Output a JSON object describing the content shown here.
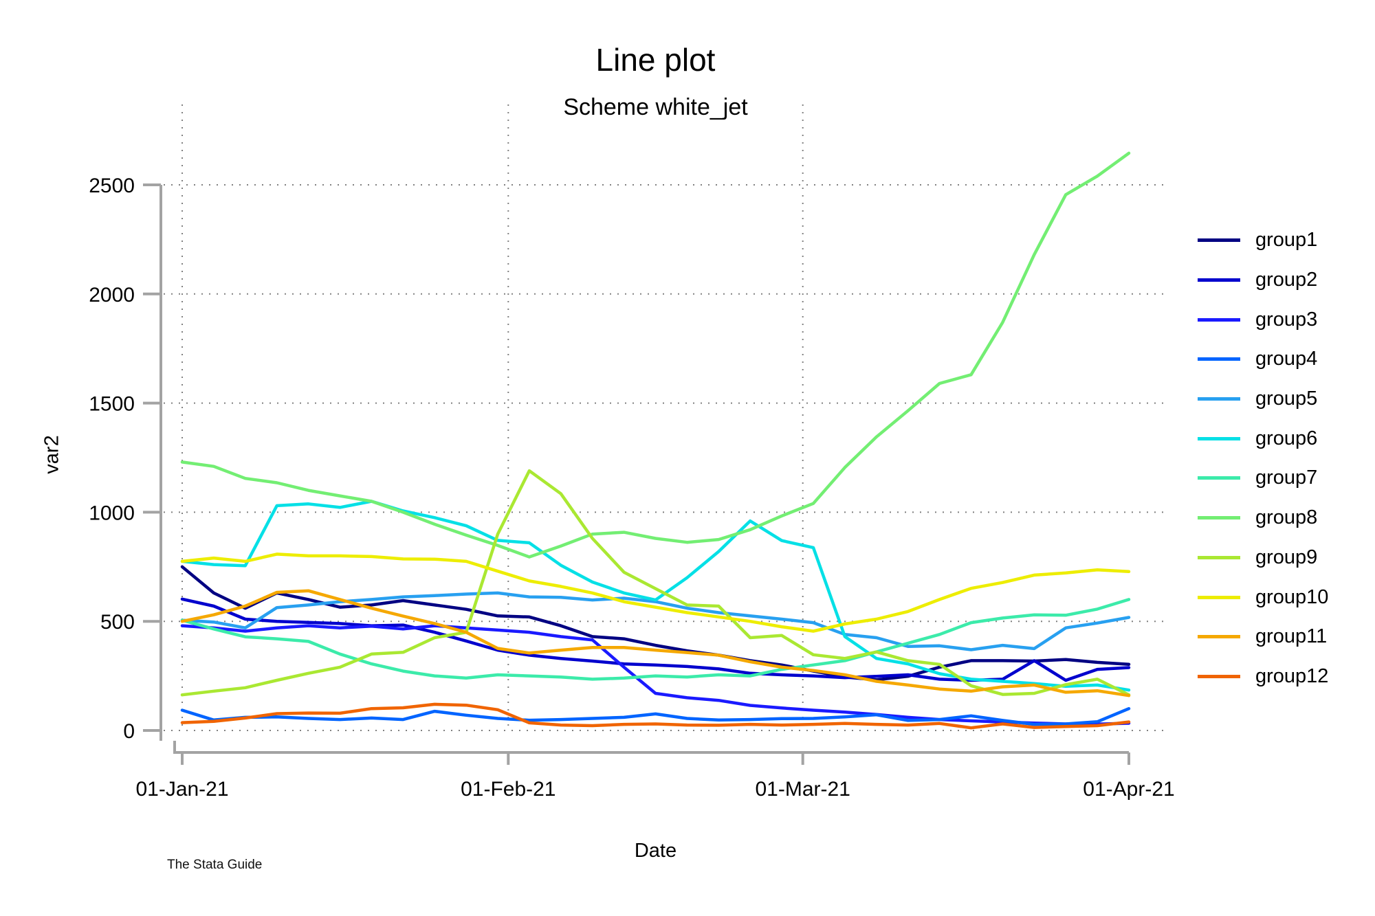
{
  "title": "Line plot",
  "subtitle": "Scheme white_jet",
  "caption": "The Stata Guide",
  "chart_data": {
    "type": "line",
    "title": "Line plot",
    "subtitle": "Scheme white_jet",
    "xlabel": "Date",
    "ylabel": "var2",
    "grid": true,
    "legend_position": "right",
    "ylim": [
      0,
      2650
    ],
    "y_ticks": [
      0,
      500,
      1000,
      1500,
      2000,
      2500
    ],
    "x_ticks": [
      {
        "day": 0,
        "label": "01-Jan-21"
      },
      {
        "day": 31,
        "label": "01-Feb-21"
      },
      {
        "day": 59,
        "label": "01-Mar-21"
      },
      {
        "day": 90,
        "label": "01-Apr-21"
      }
    ],
    "x_gridline_days": [
      0,
      31,
      59
    ],
    "days": [
      0,
      3,
      6,
      9,
      12,
      15,
      18,
      21,
      24,
      27,
      30,
      33,
      36,
      39,
      42,
      45,
      48,
      51,
      54,
      57,
      60,
      63,
      66,
      69,
      72,
      75,
      78,
      81,
      84,
      87,
      90
    ],
    "series": [
      {
        "name": "group1",
        "color": "#000082",
        "values": [
          750,
          630,
          560,
          630,
          600,
          565,
          575,
          595,
          575,
          555,
          525,
          520,
          480,
          430,
          420,
          390,
          365,
          345,
          320,
          300,
          272,
          245,
          232,
          248,
          290,
          320,
          320,
          318,
          325,
          312,
          303
        ]
      },
      {
        "name": "group2",
        "color": "#0000CD",
        "values": [
          602,
          570,
          510,
          500,
          495,
          490,
          480,
          483,
          450,
          410,
          368,
          345,
          330,
          318,
          305,
          300,
          293,
          282,
          262,
          255,
          250,
          242,
          248,
          255,
          235,
          230,
          235,
          320,
          230,
          280,
          288
        ]
      },
      {
        "name": "group3",
        "color": "#1A1AFF",
        "values": [
          480,
          470,
          455,
          470,
          480,
          470,
          478,
          465,
          480,
          470,
          460,
          450,
          430,
          415,
          290,
          170,
          150,
          138,
          115,
          103,
          93,
          84,
          73,
          60,
          50,
          44,
          39,
          34,
          30,
          29,
          33
        ]
      },
      {
        "name": "group4",
        "color": "#0064FF",
        "values": [
          93,
          48,
          60,
          62,
          55,
          50,
          57,
          50,
          88,
          70,
          55,
          47,
          50,
          55,
          60,
          76,
          55,
          48,
          50,
          54,
          55,
          62,
          72,
          46,
          50,
          67,
          46,
          28,
          30,
          40,
          100
        ]
      },
      {
        "name": "group5",
        "color": "#28A0F0",
        "values": [
          505,
          497,
          470,
          563,
          575,
          590,
          600,
          612,
          618,
          625,
          630,
          612,
          610,
          598,
          606,
          590,
          560,
          540,
          525,
          510,
          494,
          440,
          425,
          385,
          388,
          370,
          390,
          375,
          470,
          492,
          518
        ]
      },
      {
        "name": "group6",
        "color": "#06E0E6",
        "values": [
          775,
          760,
          755,
          1030,
          1038,
          1022,
          1050,
          1006,
          975,
          938,
          871,
          860,
          757,
          680,
          630,
          598,
          700,
          820,
          960,
          870,
          838,
          430,
          330,
          305,
          260,
          235,
          225,
          215,
          202,
          208,
          185
        ]
      },
      {
        "name": "group7",
        "color": "#3CEBAA",
        "values": [
          505,
          465,
          429,
          420,
          408,
          350,
          305,
          272,
          250,
          240,
          255,
          250,
          245,
          235,
          240,
          250,
          245,
          255,
          250,
          280,
          300,
          320,
          360,
          400,
          440,
          494,
          515,
          530,
          528,
          556,
          600
        ]
      },
      {
        "name": "group8",
        "color": "#73EE73",
        "values": [
          1230,
          1210,
          1155,
          1135,
          1100,
          1075,
          1050,
          1000,
          945,
          895,
          848,
          795,
          845,
          900,
          908,
          880,
          862,
          875,
          920,
          983,
          1040,
          1205,
          1345,
          1465,
          1590,
          1630,
          1870,
          2180,
          2455,
          2540,
          2645
        ]
      },
      {
        "name": "group9",
        "color": "#AAE832",
        "values": [
          163,
          180,
          196,
          230,
          262,
          290,
          350,
          358,
          425,
          450,
          900,
          1190,
          1085,
          880,
          725,
          650,
          575,
          570,
          425,
          435,
          347,
          330,
          360,
          320,
          303,
          205,
          165,
          170,
          210,
          235,
          163
        ]
      },
      {
        "name": "group10",
        "color": "#EDED00",
        "values": [
          775,
          790,
          775,
          808,
          800,
          800,
          797,
          786,
          785,
          775,
          730,
          685,
          660,
          630,
          590,
          565,
          540,
          520,
          500,
          475,
          455,
          488,
          510,
          545,
          600,
          651,
          678,
          712,
          722,
          736,
          728
        ]
      },
      {
        "name": "group11",
        "color": "#F5A800",
        "values": [
          500,
          530,
          570,
          633,
          640,
          600,
          560,
          524,
          490,
          450,
          376,
          355,
          368,
          380,
          380,
          368,
          357,
          345,
          315,
          290,
          275,
          255,
          225,
          208,
          190,
          180,
          200,
          208,
          175,
          182,
          160
        ]
      },
      {
        "name": "group12",
        "color": "#F06400",
        "values": [
          36,
          42,
          57,
          77,
          80,
          79,
          100,
          104,
          120,
          116,
          95,
          35,
          25,
          22,
          28,
          30,
          25,
          24,
          28,
          25,
          28,
          32,
          28,
          25,
          32,
          12,
          30,
          14,
          18,
          22,
          39
        ]
      }
    ]
  }
}
